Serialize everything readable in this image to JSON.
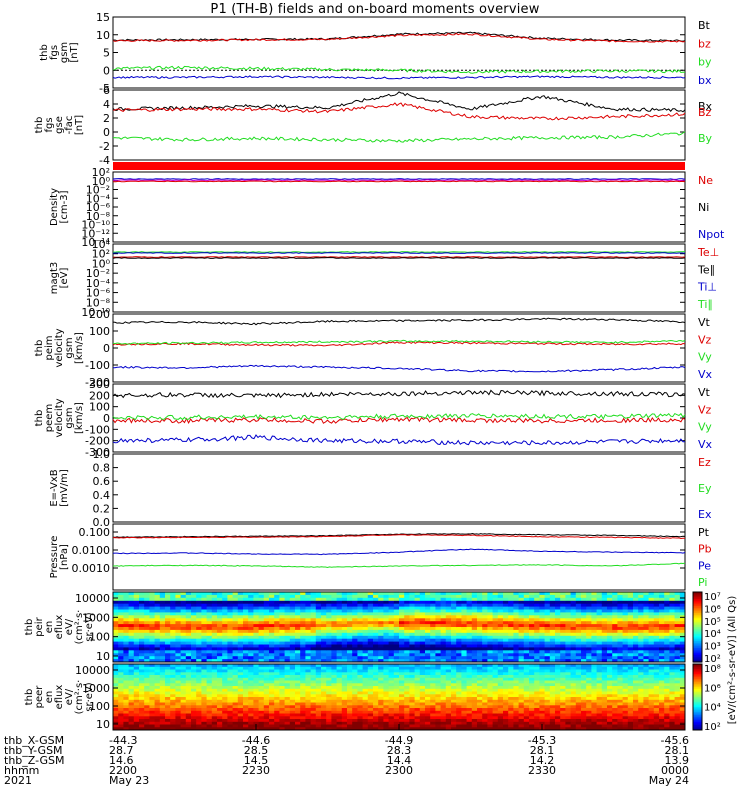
{
  "title": "P1 (TH-B) fields and on-board moments overview",
  "colors": {
    "black": "#000000",
    "red": "#dd0000",
    "green": "#22dd22",
    "blue": "#0000cc",
    "magenta": "#cc00cc",
    "violet": "#8800cc"
  },
  "chart_data": [
    {
      "id": "p1",
      "type": "line",
      "ylabel": [
        "thb",
        "fgs",
        "gsm",
        "[nT]"
      ],
      "ylim": [
        -5,
        15
      ],
      "yticks": [
        "15",
        "10",
        "5",
        "0",
        "-5"
      ],
      "series": [
        {
          "name": "Bt",
          "color": "#000000",
          "approx_values": [
            8.5,
            8.6,
            8.7,
            8.8,
            10.2,
            10.5,
            9.0,
            8.5,
            8.3
          ]
        },
        {
          "name": "bz",
          "color": "#dd0000",
          "approx_values": [
            8.3,
            8.4,
            8.6,
            8.7,
            9.8,
            10.2,
            8.7,
            8.2,
            8.1
          ]
        },
        {
          "name": "by",
          "color": "#22dd22",
          "approx_values": [
            0.5,
            0.8,
            0.5,
            0.2,
            0.0,
            -0.5,
            -0.3,
            -0.2,
            -0.3
          ]
        },
        {
          "name": "bx",
          "color": "#0000cc",
          "approx_values": [
            -2.0,
            -2.0,
            -1.8,
            -2.0,
            -2.2,
            -2.0,
            -1.8,
            -2.0,
            -2.0
          ]
        }
      ]
    },
    {
      "id": "p2",
      "type": "line",
      "ylabel": [
        "thb",
        "fgs",
        "gse",
        "-fac",
        "[nT]"
      ],
      "ylim": [
        -5,
        6
      ],
      "yticks": [
        "6",
        "4",
        "2",
        "0",
        "-2",
        "-4"
      ],
      "series": [
        {
          "name": "Bx",
          "color": "#000000",
          "approx_values": [
            3.0,
            3.2,
            3.5,
            3.2,
            5.5,
            3.0,
            5.0,
            3.0,
            2.8
          ]
        },
        {
          "name": "Bz",
          "color": "#dd0000",
          "approx_values": [
            2.8,
            3.0,
            3.0,
            2.6,
            3.8,
            1.8,
            1.5,
            1.8,
            2.2
          ]
        },
        {
          "name": "By",
          "color": "#22dd22",
          "approx_values": [
            -1.5,
            -1.8,
            -1.6,
            -1.8,
            -2.0,
            -1.7,
            -1.5,
            -1.4,
            -0.8
          ]
        }
      ]
    },
    {
      "id": "p3",
      "type": "line",
      "ylabel": [
        "Density",
        "[cm-3]"
      ],
      "scale": "log",
      "yticks": [
        "10²",
        "10⁰",
        "10⁻²",
        "10⁻⁴",
        "10⁻⁶",
        "10⁻⁸",
        "10⁻¹⁰",
        "10⁻¹²",
        "10⁻¹⁴"
      ],
      "series": [
        {
          "name": "Ne",
          "color": "#dd0000"
        },
        {
          "name": "Ni",
          "color": "#000000"
        },
        {
          "name": "Npot",
          "color": "#0000cc"
        }
      ]
    },
    {
      "id": "p4",
      "type": "line",
      "ylabel": [
        "magt3",
        "[eV]"
      ],
      "scale": "log",
      "yticks": [
        "10⁴",
        "10²",
        "10⁰",
        "10⁻²",
        "10⁻⁴",
        "10⁻⁶",
        "10⁻⁸",
        "10⁻¹⁰"
      ],
      "series": [
        {
          "name": "Te⊥",
          "color": "#dd0000"
        },
        {
          "name": "Te∥",
          "color": "#000000"
        },
        {
          "name": "Ti⊥",
          "color": "#0000cc"
        },
        {
          "name": "Ti∥",
          "color": "#22dd22"
        }
      ]
    },
    {
      "id": "p5",
      "type": "line",
      "ylabel": [
        "thb",
        "peim",
        "velocity",
        "gsm",
        "[km/s]"
      ],
      "ylim": [
        -300,
        250
      ],
      "yticks": [
        "200",
        "100",
        "0",
        "-100",
        "-200"
      ],
      "series": [
        {
          "name": "Vt",
          "color": "#000000",
          "approx_values": [
            180,
            185,
            170,
            190,
            195,
            200,
            210,
            205,
            185
          ]
        },
        {
          "name": "Vz",
          "color": "#dd0000",
          "approx_values": [
            5,
            10,
            0,
            -5,
            20,
            15,
            10,
            5,
            10
          ]
        },
        {
          "name": "Vy",
          "color": "#22dd22",
          "approx_values": [
            10,
            15,
            20,
            25,
            30,
            30,
            25,
            20,
            35
          ]
        },
        {
          "name": "Vx",
          "color": "#0000cc",
          "approx_values": [
            -180,
            -185,
            -170,
            -180,
            -190,
            -210,
            -215,
            -200,
            -180
          ]
        }
      ]
    },
    {
      "id": "p6",
      "type": "line",
      "ylabel": [
        "thb",
        "peem",
        "velocity",
        "gsm",
        "[km/s]"
      ],
      "ylim": [
        -300,
        300
      ],
      "yticks": [
        "300",
        "200",
        "100",
        "0",
        "-100",
        "-200",
        "-300"
      ],
      "series": [
        {
          "name": "Vt",
          "color": "#000000",
          "approx_values": [
            200,
            205,
            195,
            210,
            215,
            225,
            220,
            215,
            205
          ]
        },
        {
          "name": "Vz",
          "color": "#dd0000",
          "approx_values": [
            -20,
            -25,
            -15,
            -30,
            -10,
            -20,
            -25,
            -20,
            -15
          ]
        },
        {
          "name": "Vy",
          "color": "#22dd22",
          "approx_values": [
            0,
            5,
            10,
            5,
            15,
            20,
            15,
            10,
            25
          ]
        },
        {
          "name": "Vx",
          "color": "#0000cc",
          "approx_values": [
            -200,
            -195,
            -170,
            -200,
            -205,
            -220,
            -220,
            -210,
            -195
          ]
        }
      ]
    },
    {
      "id": "p7",
      "type": "line",
      "ylabel": [
        "E=-VxB",
        "[mV/m]"
      ],
      "ylim": [
        0,
        1
      ],
      "yticks": [
        "1.0",
        "0.8",
        "0.6",
        "0.4",
        "0.2",
        "0.0"
      ],
      "series": [
        {
          "name": "Ez",
          "color": "#dd0000"
        },
        {
          "name": "Ey",
          "color": "#22dd22"
        },
        {
          "name": "Ex",
          "color": "#0000cc"
        }
      ]
    },
    {
      "id": "p8",
      "type": "line",
      "ylabel": [
        "Pressure",
        "[nPa]"
      ],
      "scale": "log",
      "yticks": [
        "0.100",
        "0.0100",
        "0.0010"
      ],
      "series": [
        {
          "name": "Pt",
          "color": "#000000",
          "approx_values": [
            0.052,
            0.055,
            0.058,
            0.062,
            0.075,
            0.08,
            0.07,
            0.065,
            0.055
          ]
        },
        {
          "name": "Pb",
          "color": "#dd0000",
          "approx_values": [
            0.048,
            0.05,
            0.052,
            0.056,
            0.07,
            0.065,
            0.055,
            0.05,
            0.045
          ]
        },
        {
          "name": "Pe",
          "color": "#0000cc",
          "approx_values": [
            0.0065,
            0.0068,
            0.006,
            0.0058,
            0.0075,
            0.011,
            0.0085,
            0.0075,
            0.007
          ]
        },
        {
          "name": "Pi",
          "color": "#22dd22",
          "approx_values": [
            0.0013,
            0.0014,
            0.0013,
            0.0011,
            0.0013,
            0.0014,
            0.0015,
            0.0013,
            0.0018
          ]
        }
      ]
    },
    {
      "id": "p9",
      "type": "heatmap",
      "ylabel": [
        "thb",
        "peir",
        "en",
        "eflux",
        "eV/",
        "(cm²·s·",
        "sr·eV)"
      ],
      "scale": "log",
      "yticks": [
        "10000",
        "1000",
        "100",
        "10"
      ],
      "colorbar_ticks": [
        "10⁷",
        "10⁶",
        "10⁵",
        "10⁴",
        "10³",
        "10²"
      ]
    },
    {
      "id": "p10",
      "type": "heatmap",
      "ylabel": [
        "thb",
        "peer",
        "en",
        "eflux",
        "eV/",
        "(cm²·s·",
        "sr·eV)"
      ],
      "scale": "log",
      "yticks": [
        "10000",
        "1000",
        "100",
        "10"
      ],
      "colorbar_ticks": [
        "10⁸",
        "10⁶",
        "10⁴",
        "10²"
      ]
    }
  ],
  "colorbar_label": "[eV/(cm²-s-sr-eV)] (All Qs)",
  "x_axis": {
    "row_labels": [
      "thb_X-GSM",
      "thb_Y-GSM",
      "thb_Z-GSM",
      "hhmm",
      "2021"
    ],
    "ticks": [
      {
        "x": "-44.3",
        "y": "28.7",
        "z": "14.6",
        "hhmm": "2200",
        "date": "May 23"
      },
      {
        "x": "-44.6",
        "y": "28.5",
        "z": "14.5",
        "hhmm": "2230",
        "date": ""
      },
      {
        "x": "-44.9",
        "y": "28.3",
        "z": "14.4",
        "hhmm": "2300",
        "date": ""
      },
      {
        "x": "-45.3",
        "y": "28.1",
        "z": "14.2",
        "hhmm": "2330",
        "date": ""
      },
      {
        "x": "-45.6",
        "y": "28.1",
        "z": "13.9",
        "hhmm": "0000",
        "date": "May 24"
      }
    ]
  }
}
